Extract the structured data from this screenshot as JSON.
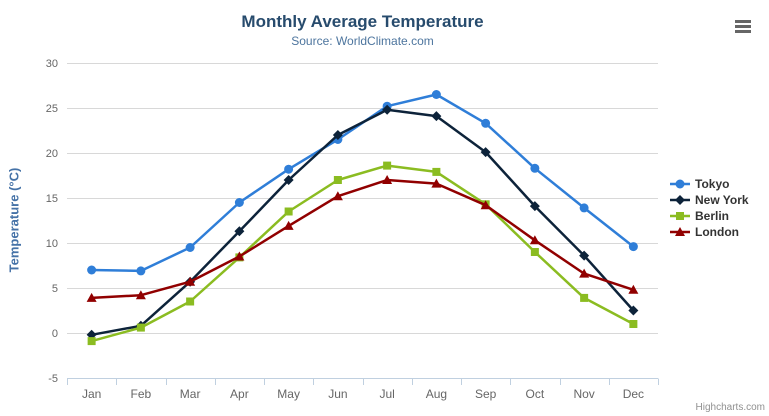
{
  "chart_data": {
    "type": "line",
    "title": "Monthly Average Temperature",
    "subtitle": "Source: WorldClimate.com",
    "xlabel": "",
    "ylabel": "Temperature (°C)",
    "categories": [
      "Jan",
      "Feb",
      "Mar",
      "Apr",
      "May",
      "Jun",
      "Jul",
      "Aug",
      "Sep",
      "Oct",
      "Nov",
      "Dec"
    ],
    "series": [
      {
        "name": "Tokyo",
        "color": "#2f7ed8",
        "marker": "circle",
        "values": [
          7.0,
          6.9,
          9.5,
          14.5,
          18.2,
          21.5,
          25.2,
          26.5,
          23.3,
          18.3,
          13.9,
          9.6
        ]
      },
      {
        "name": "New York",
        "color": "#0d233a",
        "marker": "diamond",
        "values": [
          -0.2,
          0.8,
          5.7,
          11.3,
          17.0,
          22.0,
          24.8,
          24.1,
          20.1,
          14.1,
          8.6,
          2.5
        ]
      },
      {
        "name": "Berlin",
        "color": "#8bbc21",
        "marker": "square",
        "values": [
          -0.9,
          0.6,
          3.5,
          8.4,
          13.5,
          17.0,
          18.6,
          17.9,
          14.3,
          9.0,
          3.9,
          1.0
        ]
      },
      {
        "name": "London",
        "color": "#910000",
        "marker": "triangle",
        "values": [
          3.9,
          4.2,
          5.7,
          8.5,
          11.9,
          15.2,
          17.0,
          16.6,
          14.2,
          10.3,
          6.6,
          4.8
        ]
      }
    ],
    "ylim": [
      -5,
      30
    ],
    "y_ticks": [
      30,
      25,
      20,
      15,
      10,
      5,
      0,
      -5
    ],
    "grid": true,
    "legend_position": "right"
  },
  "colors": {
    "title": "#274b6d",
    "subtitle": "#4d759e",
    "axis_title": "#4572a7",
    "axis_label": "#666666",
    "gridline": "#d8d8d8",
    "axis_line": "#c0d0e0",
    "tick": "#c0d0e0",
    "legend_text": "#333333",
    "credits": "#909090",
    "menu_icon": "#666666"
  },
  "credits": {
    "label": "Highcharts.com"
  }
}
